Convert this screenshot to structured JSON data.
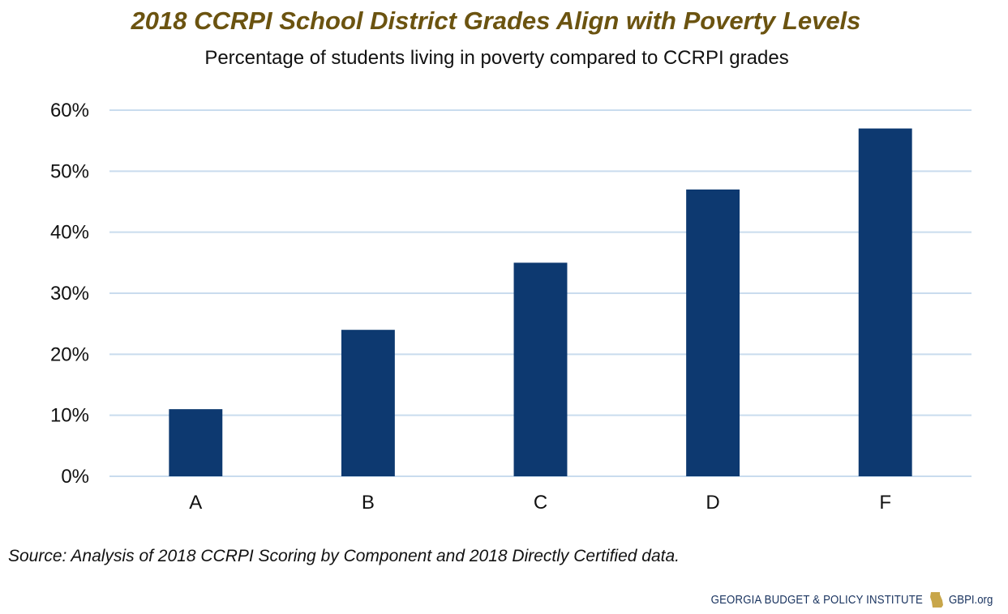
{
  "chart_data": {
    "type": "bar",
    "title": "2018 CCRPI School District Grades Align with Poverty Levels",
    "subtitle": "Percentage of students living in poverty compared to CCRPI grades",
    "categories": [
      "A",
      "B",
      "C",
      "D",
      "F"
    ],
    "values": [
      11,
      24,
      35,
      47,
      57
    ],
    "ylim": [
      0,
      60
    ],
    "yticks": [
      0,
      10,
      20,
      30,
      40,
      50,
      60
    ],
    "ytick_labels": [
      "0%",
      "10%",
      "20%",
      "30%",
      "40%",
      "50%",
      "60%"
    ],
    "xlabel": "",
    "ylabel": "",
    "grid": true,
    "colors": {
      "bar": "#0d3970",
      "grid": "#c9dcee",
      "title": "#6b5310"
    }
  },
  "source": "Source: Analysis of 2018 CCRPI Scoring by Component and 2018 Directly Certified data.",
  "footer": {
    "org_name": "GEORGIA BUDGET & POLICY INSTITUTE",
    "logo_icon": "georgia-state-icon",
    "url": "GBPI.org"
  }
}
